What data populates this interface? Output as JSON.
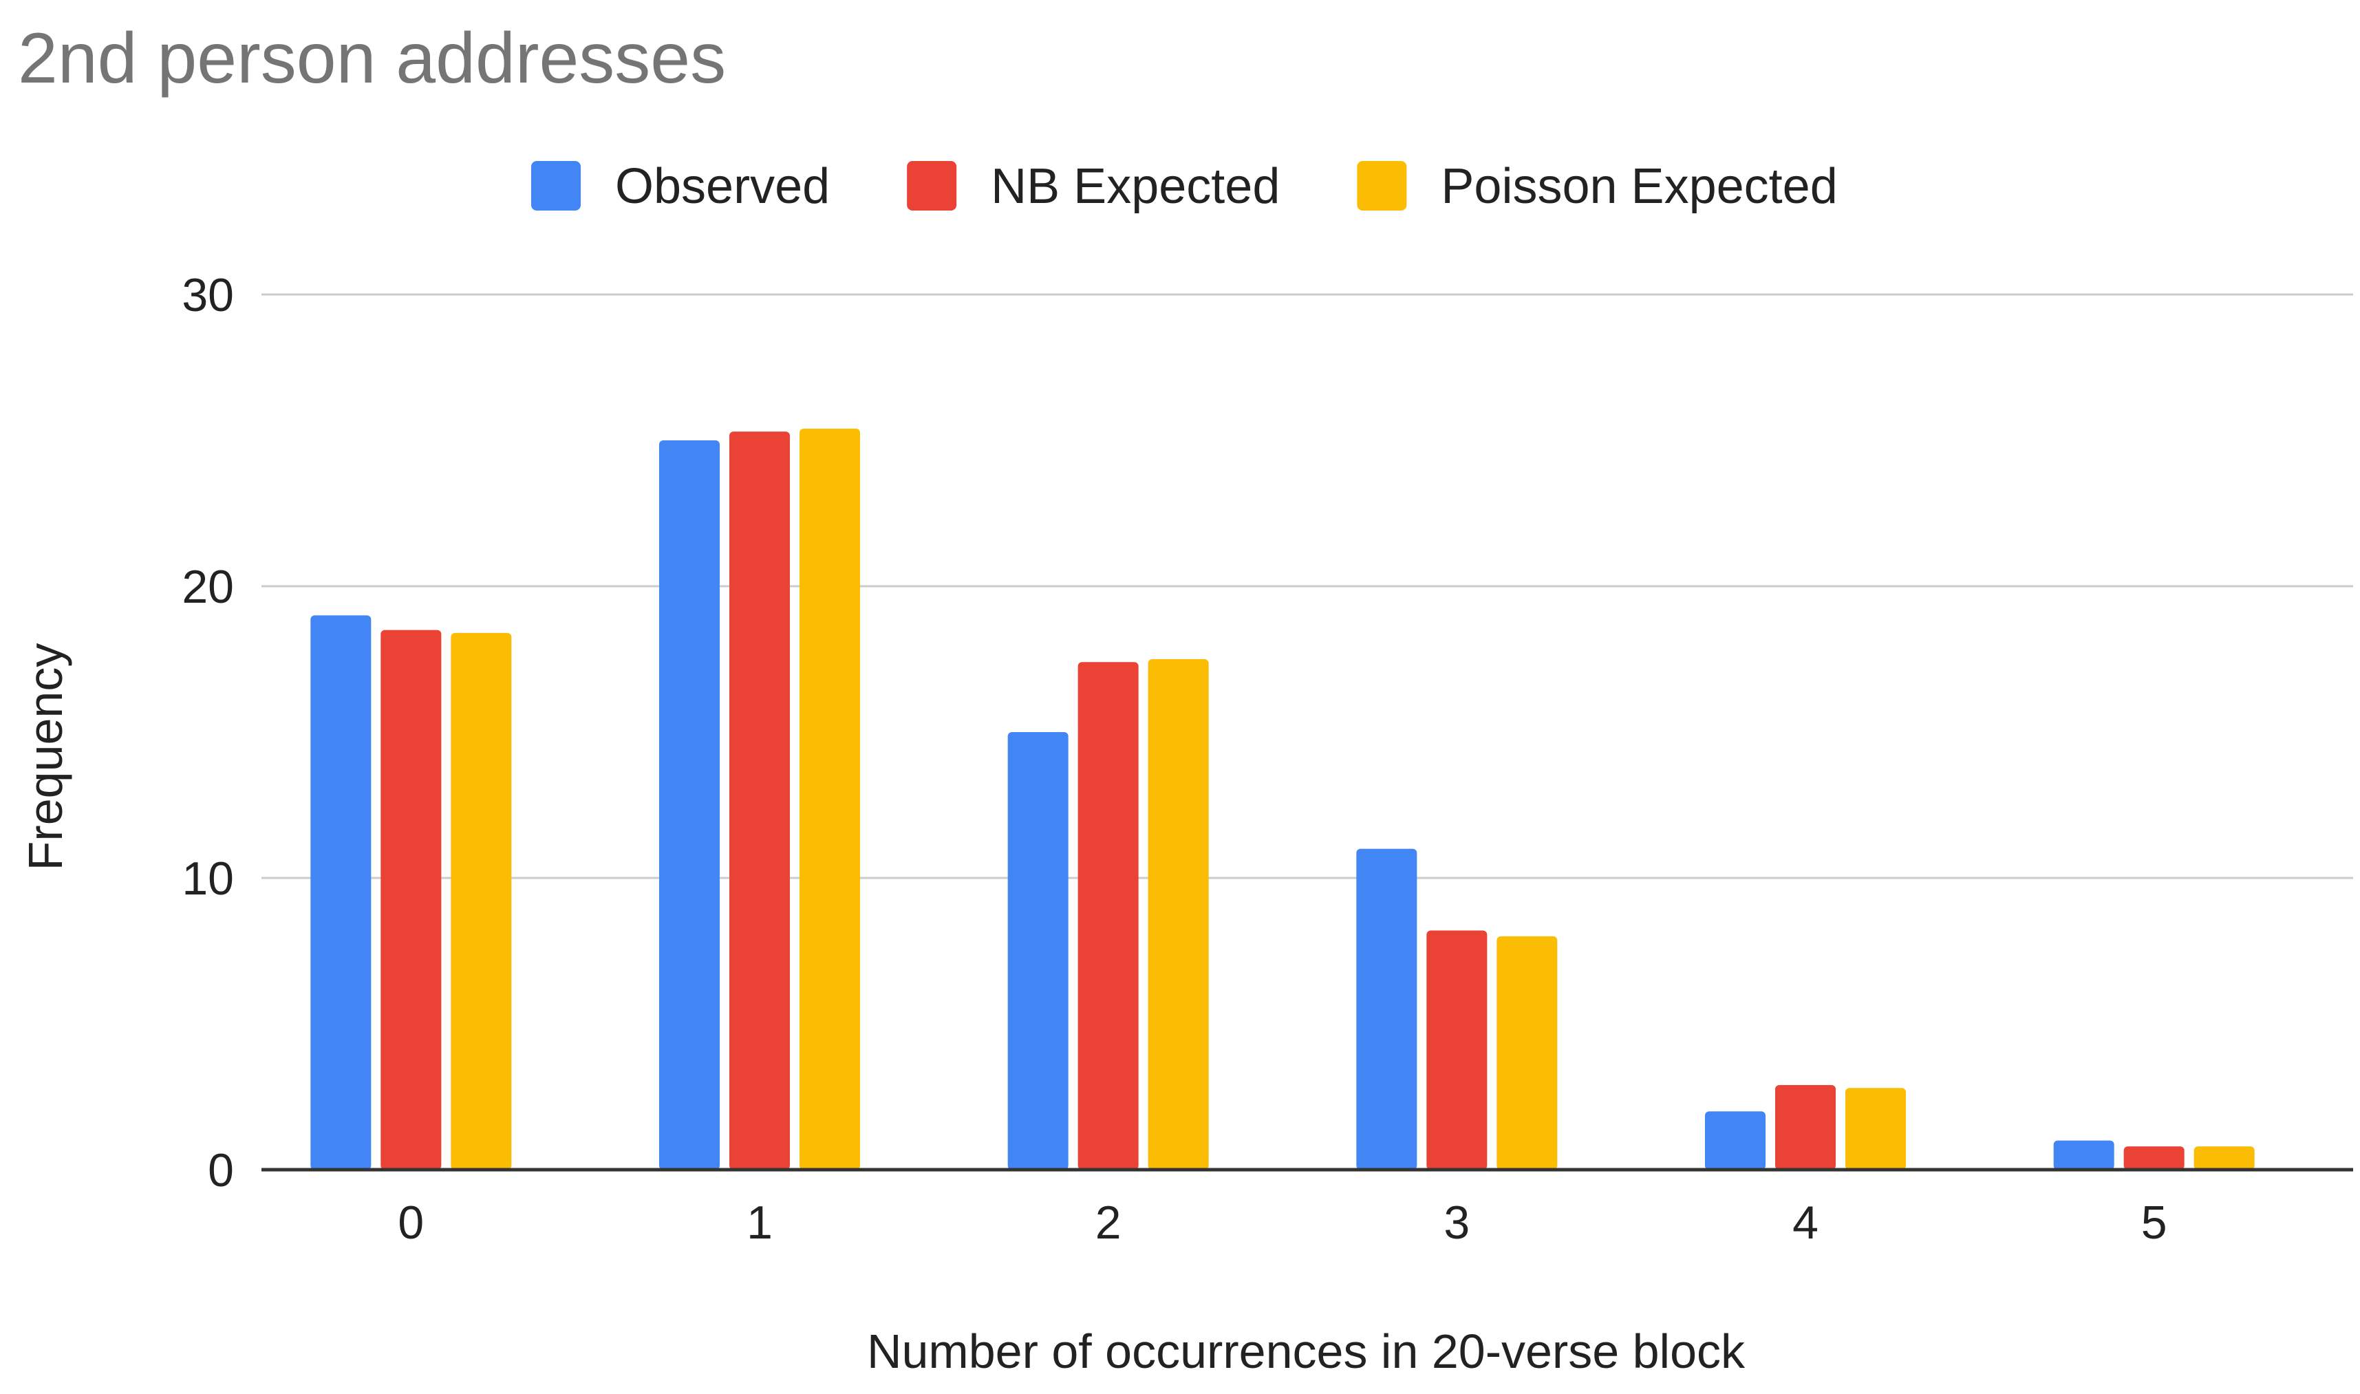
{
  "chart_data": {
    "type": "bar",
    "title": "2nd person addresses",
    "xlabel": "Number of occurrences in 20-verse block",
    "ylabel": "Frequency",
    "categories": [
      "0",
      "1",
      "2",
      "3",
      "4",
      "5"
    ],
    "series": [
      {
        "name": "Observed",
        "color": "#4285F4",
        "values": [
          19,
          25,
          15,
          11,
          2,
          1
        ]
      },
      {
        "name": "NB Expected",
        "color": "#EA4335",
        "values": [
          18.5,
          25.3,
          17.4,
          8.2,
          2.9,
          0.8
        ]
      },
      {
        "name": "Poisson Expected",
        "color": "#FBBC04",
        "values": [
          18.4,
          25.4,
          17.5,
          8.0,
          2.8,
          0.8
        ]
      }
    ],
    "ylim": [
      0,
      30
    ],
    "yticks": [
      "0",
      "10",
      "20",
      "30"
    ],
    "grid": true,
    "legend_position": "top"
  }
}
